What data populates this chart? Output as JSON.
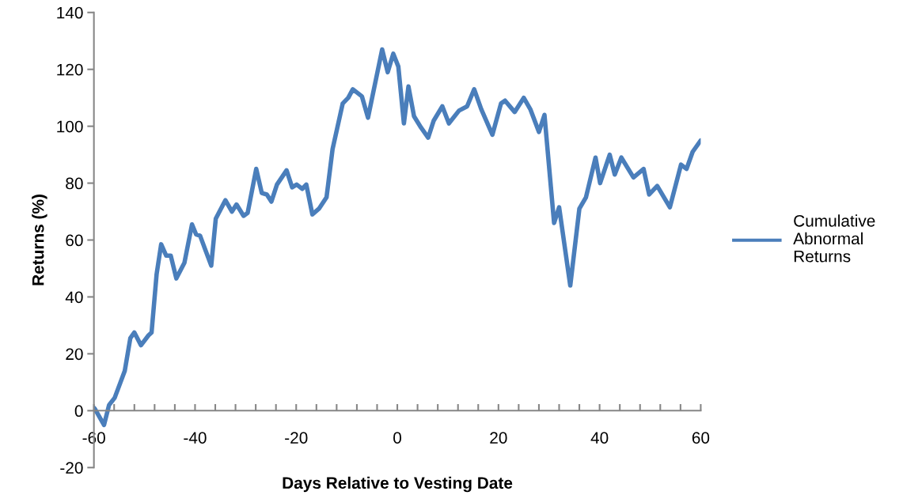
{
  "chart_data": {
    "type": "line",
    "xlabel": "Days Relative to Vesting Date",
    "ylabel": "Returns (%)",
    "xlim": [
      -60,
      60
    ],
    "ylim": [
      -20,
      140
    ],
    "xticks": [
      -60,
      {
        "value": -56,
        "label": null
      },
      {
        "value": -52,
        "label": null
      },
      {
        "value": -48,
        "label": null
      },
      {
        "value": -44,
        "label": null
      },
      -40,
      {
        "value": -36,
        "label": null
      },
      {
        "value": -32,
        "label": null
      },
      {
        "value": -28,
        "label": null
      },
      {
        "value": -24,
        "label": null
      },
      -20,
      {
        "value": -16,
        "label": null
      },
      {
        "value": -12,
        "label": null
      },
      {
        "value": -8,
        "label": null
      },
      {
        "value": -4,
        "label": null
      },
      0,
      {
        "value": 4,
        "label": null
      },
      {
        "value": 8,
        "label": null
      },
      {
        "value": 12,
        "label": null
      },
      {
        "value": 16,
        "label": null
      },
      20,
      {
        "value": 24,
        "label": null
      },
      {
        "value": 28,
        "label": null
      },
      {
        "value": 32,
        "label": null
      },
      {
        "value": 36,
        "label": null
      },
      40,
      {
        "value": 44,
        "label": null
      },
      {
        "value": 48,
        "label": null
      },
      {
        "value": 52,
        "label": null
      },
      {
        "value": 56,
        "label": null
      },
      60
    ],
    "yticks": [
      -20,
      0,
      20,
      40,
      60,
      80,
      100,
      120,
      140
    ],
    "grid": false,
    "legend": "right",
    "marker": "none",
    "line_style": "solid",
    "series": [
      {
        "name": "Cumulative Abnormal Returns",
        "color": "#4a7ebb",
        "x": [
          -60,
          -59.8,
          -58,
          -57,
          -55.9,
          -53.9,
          -52.8,
          -52,
          -50.7,
          -49.2,
          -48.6,
          -47.6,
          -46.7,
          -45.7,
          -44.8,
          -43.7,
          -42.1,
          -40.6,
          -39.8,
          -39,
          -36.8,
          -35.9,
          -34,
          -32.7,
          -31.8,
          -30.4,
          -29.6,
          -27.9,
          -26.8,
          -25.8,
          -24.9,
          -23.8,
          -21.9,
          -20.8,
          -19.9,
          -18.8,
          -18,
          -16.8,
          -15.5,
          -14,
          -12.8,
          -10.8,
          -9.7,
          -8.8,
          -7,
          -5.8,
          -3,
          -1.9,
          -0.8,
          0.2,
          1.3,
          2.2,
          3.3,
          4.7,
          6.1,
          7.2,
          8.9,
          10.2,
          12.2,
          13.8,
          15.2,
          16.6,
          18.8,
          20.5,
          21.3,
          23.2,
          25,
          26.3,
          28,
          29.1,
          31,
          32,
          34.2,
          36,
          37.3,
          39.2,
          40.1,
          42,
          43,
          44.3,
          46.7,
          48.7,
          49.8,
          51.4,
          53.9,
          56.1,
          57.2,
          58.4,
          60
        ],
        "values": [
          1,
          0.6,
          -5,
          2,
          4.5,
          14,
          25.5,
          27.5,
          23,
          26.5,
          27.5,
          48,
          58.5,
          54.5,
          54.5,
          46.5,
          52,
          65.5,
          62,
          61.5,
          51,
          67.5,
          74,
          70,
          72.5,
          68.5,
          69.5,
          85,
          76.5,
          76,
          73.5,
          79.5,
          84.5,
          78.5,
          79.5,
          78,
          79.5,
          69,
          71,
          75,
          92,
          108,
          110,
          113,
          110.5,
          103,
          127,
          119,
          125.5,
          121,
          101,
          114,
          103.5,
          99.5,
          96,
          102,
          107,
          101,
          105.5,
          107,
          113,
          106,
          97,
          108,
          109,
          105,
          110,
          106,
          98,
          104,
          66,
          71.5,
          44,
          71,
          75,
          89,
          80,
          90,
          83,
          89,
          82,
          85,
          76,
          79,
          71.5,
          86.5,
          85,
          91,
          95
        ]
      }
    ]
  }
}
